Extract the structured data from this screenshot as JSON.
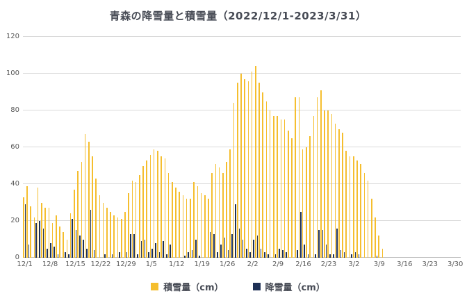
{
  "title": "青森の降雪量と積雪量（2022/12/1-2023/3/31）",
  "colors": {
    "depth": "#f5be2e",
    "snowfall": "#1e3055",
    "grid": "#d9d9d9",
    "axis_text": "#595959",
    "title_text": "#474b55"
  },
  "legend": [
    {
      "label": "積雪量（cm）",
      "color": "#f5be2e"
    },
    {
      "label": "降雪量（cm）",
      "color": "#1e3055"
    }
  ],
  "chart_data": {
    "type": "bar",
    "title": "青森の降雪量と積雪量（2022/12/1-2023/3/31）",
    "xlabel": "",
    "ylabel": "",
    "ylim": [
      0,
      120
    ],
    "y_ticks": [
      0,
      20,
      40,
      60,
      80,
      100,
      120
    ],
    "grid": true,
    "legend_position": "bottom",
    "x_tick_every": 7,
    "x_tick_labels": [
      "12/1",
      "12/8",
      "12/15",
      "12/22",
      "12/29",
      "1/5",
      "1/12",
      "1/19",
      "1/26",
      "2/2",
      "2/9",
      "2/16",
      "2/23",
      "3/2",
      "3/9",
      "3/16",
      "3/23",
      "3/30"
    ],
    "categories": [
      "12/1",
      "12/2",
      "12/3",
      "12/4",
      "12/5",
      "12/6",
      "12/7",
      "12/8",
      "12/9",
      "12/10",
      "12/11",
      "12/12",
      "12/13",
      "12/14",
      "12/15",
      "12/16",
      "12/17",
      "12/18",
      "12/19",
      "12/20",
      "12/21",
      "12/22",
      "12/23",
      "12/24",
      "12/25",
      "12/26",
      "12/27",
      "12/28",
      "12/29",
      "12/30",
      "12/31",
      "1/1",
      "1/2",
      "1/3",
      "1/4",
      "1/5",
      "1/6",
      "1/7",
      "1/8",
      "1/9",
      "1/10",
      "1/11",
      "1/12",
      "1/13",
      "1/14",
      "1/15",
      "1/16",
      "1/17",
      "1/18",
      "1/19",
      "1/20",
      "1/21",
      "1/22",
      "1/23",
      "1/24",
      "1/25",
      "1/26",
      "1/27",
      "1/28",
      "1/29",
      "1/30",
      "1/31",
      "2/1",
      "2/2",
      "2/3",
      "2/4",
      "2/5",
      "2/6",
      "2/7",
      "2/8",
      "2/9",
      "2/10",
      "2/11",
      "2/12",
      "2/13",
      "2/14",
      "2/15",
      "2/16",
      "2/17",
      "2/18",
      "2/19",
      "2/20",
      "2/21",
      "2/22",
      "2/23",
      "2/24",
      "2/25",
      "2/26",
      "2/27",
      "2/28",
      "3/1",
      "3/2",
      "3/3",
      "3/4",
      "3/5",
      "3/6",
      "3/7",
      "3/8",
      "3/9",
      "3/10",
      "3/11",
      "3/12",
      "3/13",
      "3/14",
      "3/15",
      "3/16",
      "3/17",
      "3/18",
      "3/19",
      "3/20",
      "3/21",
      "3/22",
      "3/23",
      "3/24",
      "3/25",
      "3/26",
      "3/27",
      "3/28",
      "3/29",
      "3/30",
      "3/31"
    ],
    "series": [
      {
        "name": "積雪量（cm）",
        "color": "#f5be2e",
        "values": [
          33,
          39,
          28,
          22,
          38,
          30,
          27,
          27,
          19,
          23,
          17,
          14,
          10,
          24,
          37,
          47,
          52,
          67,
          63,
          55,
          43,
          34,
          30,
          27,
          25,
          23,
          22,
          21,
          25,
          35,
          42,
          41,
          45,
          50,
          53,
          56,
          59,
          58,
          55,
          54,
          46,
          41,
          38,
          36,
          34,
          32,
          32,
          41,
          39,
          35,
          34,
          32,
          46,
          51,
          49,
          46,
          52,
          59,
          84,
          95,
          100,
          97,
          96,
          101,
          104,
          95,
          90,
          85,
          80,
          77,
          77,
          75,
          75,
          69,
          65,
          87,
          87,
          59,
          60,
          66,
          77,
          87,
          91,
          80,
          80,
          78,
          73,
          70,
          68,
          58,
          55,
          55,
          53,
          51,
          46,
          42,
          32,
          22,
          12,
          5,
          0,
          0,
          0,
          0,
          0,
          0,
          0,
          0,
          0,
          0,
          0,
          0,
          0,
          0,
          0,
          0,
          0,
          0,
          0,
          0,
          0
        ]
      },
      {
        "name": "降雪量（cm）",
        "color": "#1e3055",
        "values": [
          29,
          7,
          0,
          19,
          20,
          16,
          5,
          8,
          6,
          2,
          0,
          3,
          2,
          21,
          15,
          12,
          10,
          5,
          26,
          4,
          0,
          0,
          2,
          0,
          2,
          0,
          3,
          0,
          3,
          13,
          13,
          2,
          9,
          10,
          3,
          5,
          8,
          3,
          9,
          2,
          7,
          0,
          0,
          0,
          1,
          3,
          4,
          10,
          1,
          0,
          0,
          14,
          13,
          3,
          7,
          11,
          4,
          13,
          29,
          16,
          10,
          5,
          3,
          10,
          12,
          5,
          3,
          2,
          0,
          2,
          5,
          4,
          3,
          0,
          0,
          4,
          25,
          7,
          2,
          0,
          2,
          15,
          15,
          7,
          2,
          2,
          16,
          4,
          3,
          0,
          2,
          3,
          2,
          0,
          0,
          0,
          0,
          1,
          0,
          0,
          0,
          0,
          0,
          0,
          0,
          0,
          0,
          0,
          0,
          0,
          0,
          0,
          0,
          0,
          0,
          0,
          0,
          0,
          0,
          0,
          0
        ]
      }
    ]
  }
}
